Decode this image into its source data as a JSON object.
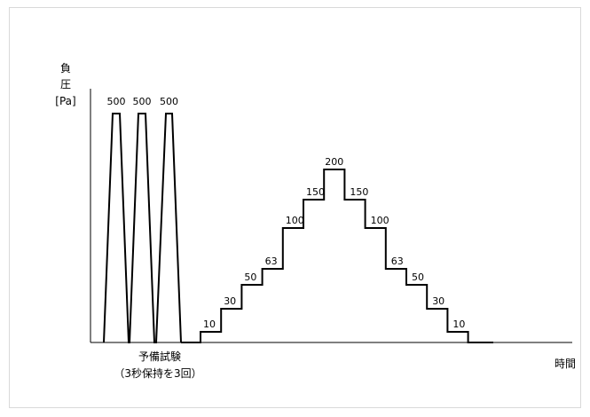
{
  "chart_data": {
    "type": "line",
    "title": "",
    "ylabel_lines": [
      "負",
      "圧",
      "[Pa]"
    ],
    "xlabel": "時間",
    "annotation_lines": [
      "予備試験",
      "（3秒保持を3回）"
    ],
    "preliminary": {
      "values": [
        500,
        500,
        500
      ]
    },
    "steps": {
      "ascending": [
        10,
        30,
        50,
        63,
        100,
        150,
        200
      ],
      "descending": [
        150,
        100,
        63,
        50,
        30,
        10
      ],
      "step_labels": [
        "10",
        "30",
        "50",
        "63",
        "100",
        "150",
        "200",
        "150",
        "100",
        "63",
        "50",
        "30",
        "10"
      ]
    },
    "grid": false,
    "legend": "none"
  }
}
